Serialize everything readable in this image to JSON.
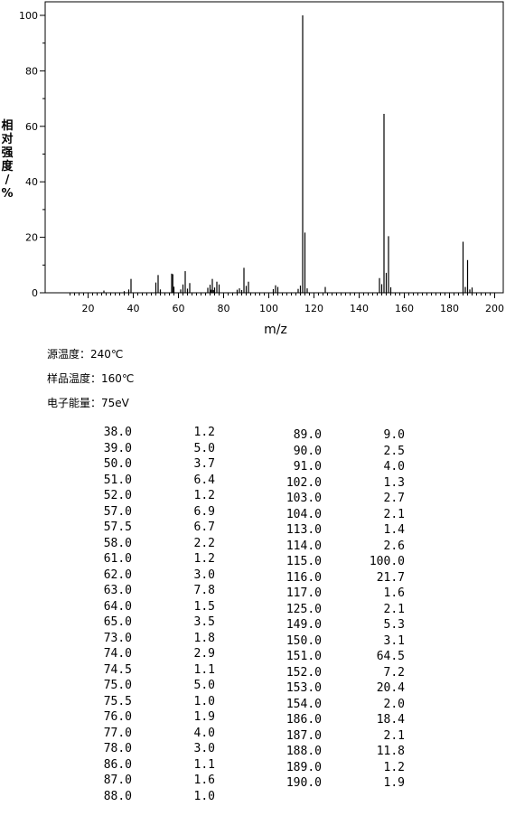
{
  "chart_data": {
    "type": "bar",
    "xlabel": "m/z",
    "ylabel": "相对强度/%",
    "xlim": [
      10,
      200
    ],
    "ylim": [
      0,
      100
    ],
    "xticks": [
      20,
      40,
      60,
      80,
      100,
      120,
      140,
      160,
      180,
      200
    ],
    "yticks": [
      0,
      20,
      40,
      60,
      80,
      100
    ],
    "grid": false,
    "peaks": [
      {
        "mz": 27.0,
        "i": 0.8
      },
      {
        "mz": 36.0,
        "i": 0.6
      },
      {
        "mz": 38.0,
        "i": 1.2
      },
      {
        "mz": 39.0,
        "i": 5.0
      },
      {
        "mz": 50.0,
        "i": 3.7
      },
      {
        "mz": 51.0,
        "i": 6.4
      },
      {
        "mz": 52.0,
        "i": 1.2
      },
      {
        "mz": 57.0,
        "i": 6.9
      },
      {
        "mz": 57.5,
        "i": 6.7
      },
      {
        "mz": 58.0,
        "i": 2.2
      },
      {
        "mz": 61.0,
        "i": 1.2
      },
      {
        "mz": 62.0,
        "i": 3.0
      },
      {
        "mz": 63.0,
        "i": 7.8
      },
      {
        "mz": 64.0,
        "i": 1.5
      },
      {
        "mz": 65.0,
        "i": 3.5
      },
      {
        "mz": 73.0,
        "i": 1.8
      },
      {
        "mz": 74.0,
        "i": 2.9
      },
      {
        "mz": 74.5,
        "i": 1.1
      },
      {
        "mz": 75.0,
        "i": 5.0
      },
      {
        "mz": 75.5,
        "i": 1.0
      },
      {
        "mz": 76.0,
        "i": 1.9
      },
      {
        "mz": 77.0,
        "i": 4.0
      },
      {
        "mz": 78.0,
        "i": 3.0
      },
      {
        "mz": 86.0,
        "i": 1.1
      },
      {
        "mz": 87.0,
        "i": 1.6
      },
      {
        "mz": 88.0,
        "i": 1.0
      },
      {
        "mz": 89.0,
        "i": 9.0
      },
      {
        "mz": 90.0,
        "i": 2.5
      },
      {
        "mz": 91.0,
        "i": 4.0
      },
      {
        "mz": 102.0,
        "i": 1.3
      },
      {
        "mz": 103.0,
        "i": 2.7
      },
      {
        "mz": 104.0,
        "i": 2.1
      },
      {
        "mz": 113.0,
        "i": 1.4
      },
      {
        "mz": 114.0,
        "i": 2.6
      },
      {
        "mz": 115.0,
        "i": 100.0
      },
      {
        "mz": 116.0,
        "i": 21.7
      },
      {
        "mz": 117.0,
        "i": 1.6
      },
      {
        "mz": 125.0,
        "i": 2.1
      },
      {
        "mz": 149.0,
        "i": 5.3
      },
      {
        "mz": 150.0,
        "i": 3.1
      },
      {
        "mz": 151.0,
        "i": 64.5
      },
      {
        "mz": 152.0,
        "i": 7.2
      },
      {
        "mz": 153.0,
        "i": 20.4
      },
      {
        "mz": 154.0,
        "i": 2.0
      },
      {
        "mz": 186.0,
        "i": 18.4
      },
      {
        "mz": 187.0,
        "i": 2.1
      },
      {
        "mz": 188.0,
        "i": 11.8
      },
      {
        "mz": 189.0,
        "i": 1.2
      },
      {
        "mz": 190.0,
        "i": 1.9
      }
    ]
  },
  "info": [
    {
      "label": "源温度：",
      "value": "240℃"
    },
    {
      "label": "样品温度：",
      "value": "160℃"
    },
    {
      "label": "电子能量：",
      "value": "75eV"
    }
  ],
  "table": {
    "left": [
      [
        "38.0",
        "1.2"
      ],
      [
        "39.0",
        "5.0"
      ],
      [
        "50.0",
        "3.7"
      ],
      [
        "51.0",
        "6.4"
      ],
      [
        "52.0",
        "1.2"
      ],
      [
        "57.0",
        "6.9"
      ],
      [
        "57.5",
        "6.7"
      ],
      [
        "58.0",
        "2.2"
      ],
      [
        "61.0",
        "1.2"
      ],
      [
        "62.0",
        "3.0"
      ],
      [
        "63.0",
        "7.8"
      ],
      [
        "64.0",
        "1.5"
      ],
      [
        "65.0",
        "3.5"
      ],
      [
        "73.0",
        "1.8"
      ],
      [
        "74.0",
        "2.9"
      ],
      [
        "74.5",
        "1.1"
      ],
      [
        "75.0",
        "5.0"
      ],
      [
        "75.5",
        "1.0"
      ],
      [
        "76.0",
        "1.9"
      ],
      [
        "77.0",
        "4.0"
      ],
      [
        "78.0",
        "3.0"
      ],
      [
        "86.0",
        "1.1"
      ],
      [
        "87.0",
        "1.6"
      ],
      [
        "88.0",
        "1.0"
      ]
    ],
    "right": [
      [
        "89.0",
        "9.0"
      ],
      [
        "90.0",
        "2.5"
      ],
      [
        "91.0",
        "4.0"
      ],
      [
        "102.0",
        "1.3"
      ],
      [
        "103.0",
        "2.7"
      ],
      [
        "104.0",
        "2.1"
      ],
      [
        "113.0",
        "1.4"
      ],
      [
        "114.0",
        "2.6"
      ],
      [
        "115.0",
        "100.0"
      ],
      [
        "116.0",
        "21.7"
      ],
      [
        "117.0",
        "1.6"
      ],
      [
        "125.0",
        "2.1"
      ],
      [
        "149.0",
        "5.3"
      ],
      [
        "150.0",
        "3.1"
      ],
      [
        "151.0",
        "64.5"
      ],
      [
        "152.0",
        "7.2"
      ],
      [
        "153.0",
        "20.4"
      ],
      [
        "154.0",
        "2.0"
      ],
      [
        "186.0",
        "18.4"
      ],
      [
        "187.0",
        "2.1"
      ],
      [
        "188.0",
        "11.8"
      ],
      [
        "189.0",
        "1.2"
      ],
      [
        "190.0",
        "1.9"
      ]
    ]
  }
}
